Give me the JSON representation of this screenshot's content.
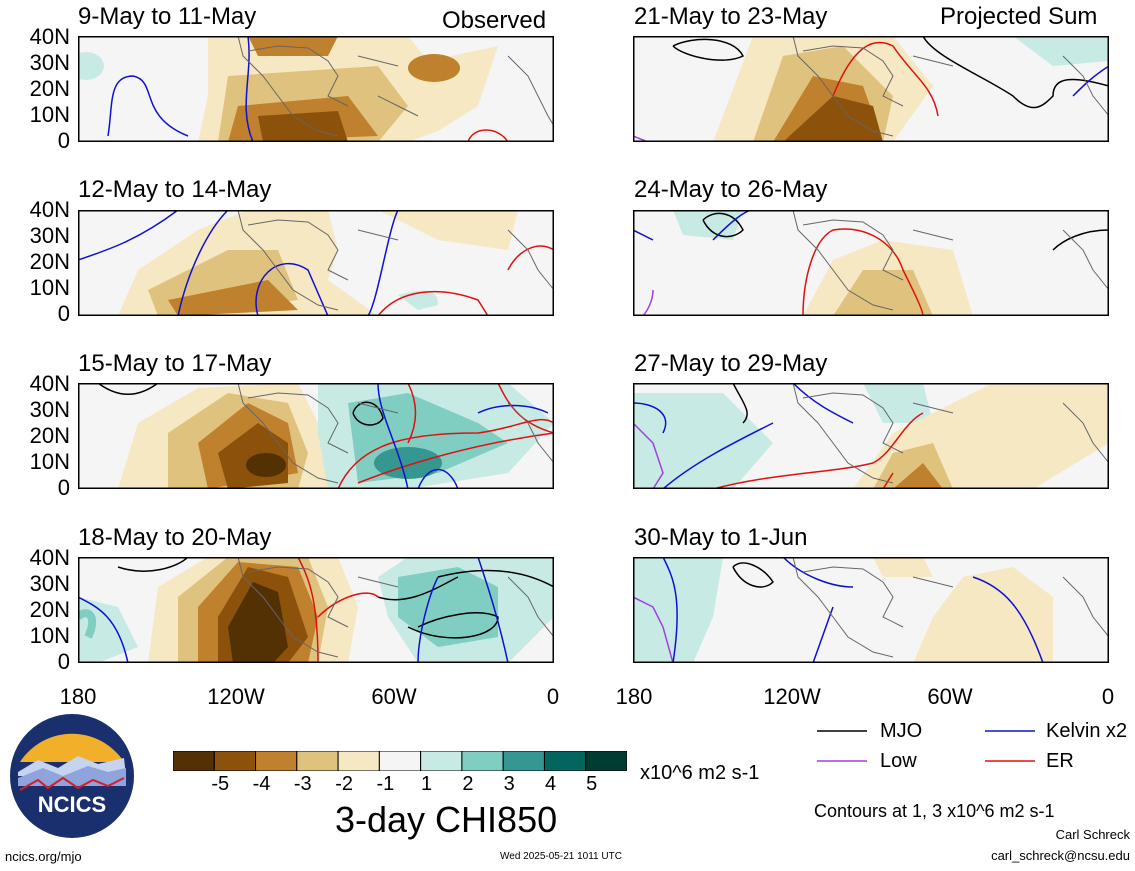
{
  "header": {
    "left_tag": "Observed",
    "right_tag": "Projected Sum"
  },
  "panels_left": [
    "9-May to 11-May",
    "12-May to 14-May",
    "15-May to 17-May",
    "18-May to 20-May"
  ],
  "panels_right": [
    "21-May to 23-May",
    "24-May to 26-May",
    "27-May to 29-May",
    "30-May to 1-Jun"
  ],
  "y_ticks": [
    "40N",
    "30N",
    "20N",
    "10N",
    "0"
  ],
  "x_ticks": [
    "180",
    "120W",
    "60W",
    "0"
  ],
  "colorbar": {
    "labels": [
      "-5",
      "-4",
      "-3",
      "-2",
      "-1",
      "1",
      "2",
      "3",
      "4",
      "5"
    ],
    "colors": [
      "#543005",
      "#8c510a",
      "#bf812d",
      "#dfc27d",
      "#f6e8c3",
      "#f5f5f5",
      "#c7eae5",
      "#80cdc1",
      "#35978f",
      "#01665e",
      "#003c30"
    ],
    "units": "x10^6 m2 s-1",
    "title": "3-day CHI850"
  },
  "legend": {
    "mjo": "MJO",
    "kelvin": "Kelvin x2",
    "low": "Low",
    "er": "ER",
    "colors": {
      "mjo": "#000000",
      "kelvin": "#1010d0",
      "low": "#a040e0",
      "er": "#e01010"
    }
  },
  "contours_note": "Contours at 1, 3 x10^6 m2 s-1",
  "author": {
    "name": "Carl Schreck",
    "email": "carl_schreck@ncsu.edu"
  },
  "footer": {
    "url": "ncics.org/mjo",
    "timestamp": "Wed 2025-05-21 1011 UTC"
  },
  "logo": {
    "text": "NCICS"
  }
}
